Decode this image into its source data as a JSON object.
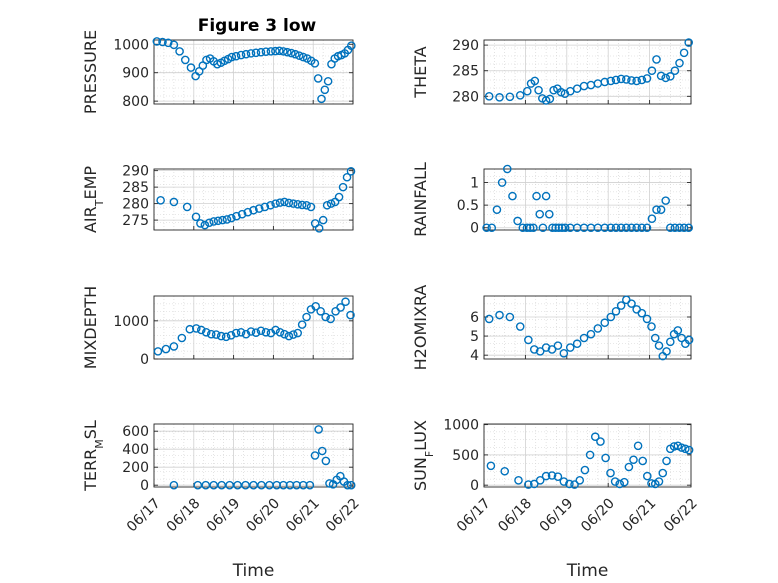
{
  "figure": {
    "title": "Figure 3 low"
  },
  "colors": {
    "series": "#0072BD",
    "axis": "#262626",
    "grid": "#d0d0d0"
  },
  "chart_data": [
    {
      "type": "scatter",
      "title": "Figure 3 low",
      "xlabel": "",
      "ylabel": "PRESSURE",
      "ylabel_sub": "",
      "xlim": [
        "06/17",
        "06/22"
      ],
      "xticks": [],
      "ylim": [
        790,
        1015
      ],
      "yticks": [
        800,
        900,
        1000
      ],
      "grid": true,
      "marker": "open-circle",
      "x": [
        "06/17",
        "06/17",
        "06/17",
        "06/17",
        "06/17",
        "06/17",
        "06/17",
        "06/18",
        "06/18",
        "06/18",
        "06/18",
        "06/18",
        "06/18",
        "06/18",
        "06/18",
        "06/18",
        "06/18",
        "06/18",
        "06/19",
        "06/19",
        "06/19",
        "06/19",
        "06/19",
        "06/19",
        "06/19",
        "06/19",
        "06/20",
        "06/20",
        "06/20",
        "06/20",
        "06/20",
        "06/20",
        "06/20",
        "06/20",
        "06/20",
        "06/20",
        "06/21",
        "06/21",
        "06/21",
        "06/21",
        "06/21",
        "06/21",
        "06/21",
        "06/21",
        "06/21",
        "06/21",
        "06/21",
        "06/21"
      ],
      "y": [
        1010,
        1008,
        1005,
        998,
        975,
        945,
        918,
        888,
        905,
        925,
        945,
        950,
        940,
        930,
        935,
        942,
        948,
        955,
        958,
        962,
        965,
        968,
        970,
        972,
        974,
        975,
        976,
        977,
        975,
        972,
        969,
        965,
        960,
        955,
        950,
        942,
        933,
        880,
        808,
        840,
        870,
        930,
        950,
        958,
        962,
        968,
        980,
        995
      ]
    },
    {
      "type": "scatter",
      "title": "",
      "xlabel": "",
      "ylabel": "THETA",
      "ylabel_sub": "",
      "xlim": [
        "06/17",
        "06/22"
      ],
      "xticks": [],
      "ylim": [
        278.5,
        291
      ],
      "yticks": [
        280,
        285,
        290
      ],
      "grid": true,
      "marker": "open-circle",
      "x": [
        "06/17",
        "06/17",
        "06/17",
        "06/17",
        "06/18",
        "06/18",
        "06/18",
        "06/18",
        "06/18",
        "06/18",
        "06/18",
        "06/18",
        "06/18",
        "06/18",
        "06/18",
        "06/19",
        "06/19",
        "06/19",
        "06/19",
        "06/19",
        "06/19",
        "06/20",
        "06/20",
        "06/20",
        "06/20",
        "06/20",
        "06/20",
        "06/20",
        "06/20",
        "06/21",
        "06/21",
        "06/21",
        "06/21",
        "06/21",
        "06/21",
        "06/21",
        "06/21",
        "06/21"
      ],
      "y": [
        280,
        279.8,
        279.9,
        280.2,
        281,
        282.5,
        283,
        281.2,
        279.6,
        279.2,
        279.5,
        281.2,
        281.5,
        280.8,
        280.5,
        281,
        281.5,
        282,
        282.2,
        282.5,
        282.8,
        283,
        283.2,
        283.4,
        283.3,
        283.1,
        283,
        283.2,
        283.5,
        285,
        287.2,
        284,
        283.6,
        283.9,
        285,
        286.5,
        288.5,
        290.5
      ]
    },
    {
      "type": "scatter",
      "title": "",
      "xlabel": "",
      "ylabel": "AIR",
      "ylabel_sub": "T",
      "ylabel_suffix": "EMP",
      "xlim": [
        "06/17",
        "06/22"
      ],
      "xticks": [],
      "ylim": [
        272,
        290.5
      ],
      "yticks": [
        275,
        280,
        285,
        290
      ],
      "grid": true,
      "marker": "open-circle",
      "x": [
        "06/17",
        "06/17",
        "06/17",
        "06/18",
        "06/18",
        "06/18",
        "06/18",
        "06/18",
        "06/18",
        "06/18",
        "06/18",
        "06/18",
        "06/19",
        "06/19",
        "06/19",
        "06/19",
        "06/19",
        "06/19",
        "06/19",
        "06/20",
        "06/20",
        "06/20",
        "06/20",
        "06/20",
        "06/20",
        "06/20",
        "06/20",
        "06/20",
        "06/21",
        "06/21",
        "06/21",
        "06/21",
        "06/21",
        "06/21",
        "06/21",
        "06/21",
        "06/21",
        "06/21"
      ],
      "y": [
        281,
        280.5,
        279,
        276,
        274,
        273.5,
        274.2,
        274.6,
        274.8,
        275,
        275.2,
        275.6,
        276.2,
        276.8,
        277.4,
        278,
        278.5,
        279,
        279.5,
        280,
        280.3,
        280.5,
        280.2,
        280,
        279.8,
        279.6,
        279.5,
        279,
        274,
        272.5,
        275,
        279.5,
        280,
        280.5,
        282,
        285,
        288,
        289.8
      ]
    },
    {
      "type": "scatter",
      "title": "",
      "xlabel": "",
      "ylabel": "RAINFALL",
      "ylabel_sub": "",
      "xlim": [
        "06/17",
        "06/22"
      ],
      "xticks": [],
      "ylim": [
        -0.05,
        1.3
      ],
      "yticks": [
        0,
        0.5,
        1
      ],
      "grid": true,
      "marker": "open-circle",
      "x": [
        "06/17",
        "06/17",
        "06/17",
        "06/17",
        "06/17",
        "06/17",
        "06/17",
        "06/17",
        "06/18",
        "06/18",
        "06/18",
        "06/18",
        "06/18",
        "06/18",
        "06/18",
        "06/18",
        "06/18",
        "06/18",
        "06/18",
        "06/18",
        "06/18",
        "06/19",
        "06/19",
        "06/19",
        "06/19",
        "06/19",
        "06/19",
        "06/20",
        "06/20",
        "06/20",
        "06/20",
        "06/20",
        "06/20",
        "06/20",
        "06/20",
        "06/21",
        "06/21",
        "06/21",
        "06/21",
        "06/21",
        "06/21",
        "06/21",
        "06/21",
        "06/21"
      ],
      "y": [
        0,
        0,
        0.4,
        1.0,
        1.3,
        0.7,
        0.15,
        0,
        0,
        0,
        0,
        0.7,
        0.3,
        0,
        0.7,
        0.3,
        0,
        0,
        0,
        0,
        0,
        0,
        0,
        0,
        0,
        0,
        0,
        0,
        0,
        0,
        0,
        0,
        0,
        0,
        0,
        0.2,
        0.4,
        0.4,
        0.6,
        0,
        0,
        0,
        0,
        0
      ]
    },
    {
      "type": "scatter",
      "title": "",
      "xlabel": "",
      "ylabel": "MIXDEPTH",
      "ylabel_sub": "",
      "xlim": [
        "06/17",
        "06/22"
      ],
      "xticks": [],
      "ylim": [
        0,
        1650
      ],
      "yticks": [
        0,
        1000
      ],
      "grid": true,
      "marker": "open-circle",
      "x": [
        "06/17",
        "06/17",
        "06/17",
        "06/17",
        "06/17",
        "06/18",
        "06/18",
        "06/18",
        "06/18",
        "06/18",
        "06/18",
        "06/18",
        "06/18",
        "06/19",
        "06/19",
        "06/19",
        "06/19",
        "06/19",
        "06/19",
        "06/19",
        "06/19",
        "06/20",
        "06/20",
        "06/20",
        "06/20",
        "06/20",
        "06/20",
        "06/20",
        "06/20",
        "06/20",
        "06/21",
        "06/21",
        "06/21",
        "06/21",
        "06/21",
        "06/21",
        "06/21",
        "06/21"
      ],
      "y": [
        200,
        260,
        330,
        550,
        780,
        800,
        760,
        700,
        650,
        640,
        600,
        580,
        620,
        680,
        700,
        650,
        720,
        690,
        740,
        700,
        680,
        760,
        700,
        650,
        600,
        640,
        680,
        900,
        1100,
        1300,
        1380,
        1250,
        1100,
        1050,
        1250,
        1350,
        1500,
        1150
      ]
    },
    {
      "type": "scatter",
      "title": "",
      "xlabel": "",
      "ylabel": "H2OMIXRA",
      "ylabel_sub": "",
      "xlim": [
        "06/17",
        "06/22"
      ],
      "xticks": [],
      "ylim": [
        3.8,
        7.1
      ],
      "yticks": [
        4,
        5,
        6
      ],
      "grid": true,
      "marker": "open-circle",
      "x": [
        "06/17",
        "06/17",
        "06/17",
        "06/17",
        "06/18",
        "06/18",
        "06/18",
        "06/18",
        "06/18",
        "06/18",
        "06/18",
        "06/19",
        "06/19",
        "06/19",
        "06/19",
        "06/19",
        "06/19",
        "06/20",
        "06/20",
        "06/20",
        "06/20",
        "06/20",
        "06/20",
        "06/20",
        "06/20",
        "06/21",
        "06/21",
        "06/21",
        "06/21",
        "06/21",
        "06/21",
        "06/21",
        "06/21",
        "06/21",
        "06/21",
        "06/21"
      ],
      "y": [
        5.9,
        6.1,
        6.0,
        5.5,
        4.8,
        4.3,
        4.2,
        4.4,
        4.3,
        4.5,
        4.1,
        4.4,
        4.6,
        4.9,
        5.1,
        5.4,
        5.7,
        6.0,
        6.3,
        6.6,
        6.9,
        6.7,
        6.4,
        6.2,
        5.9,
        5.5,
        4.9,
        4.5,
        3.95,
        4.2,
        4.7,
        5.1,
        5.3,
        4.9,
        4.6,
        4.8
      ]
    },
    {
      "type": "scatter",
      "title": "",
      "xlabel": "Time",
      "ylabel": "TERR",
      "ylabel_sub": "M",
      "ylabel_suffix": "SL",
      "xlim": [
        "06/17",
        "06/22"
      ],
      "xticks": [
        "06/17",
        "06/18",
        "06/19",
        "06/20",
        "06/21",
        "06/22"
      ],
      "ylim": [
        -20,
        680
      ],
      "yticks": [
        0,
        200,
        400,
        600
      ],
      "grid": true,
      "marker": "open-circle",
      "x": [
        "06/17",
        "06/18",
        "06/18",
        "06/18",
        "06/18",
        "06/18",
        "06/19",
        "06/19",
        "06/19",
        "06/19",
        "06/19",
        "06/20",
        "06/20",
        "06/20",
        "06/20",
        "06/20",
        "06/20",
        "06/21",
        "06/21",
        "06/21",
        "06/21",
        "06/21",
        "06/21",
        "06/21",
        "06/21",
        "06/21",
        "06/21",
        "06/21"
      ],
      "y": [
        0,
        0,
        0,
        0,
        0,
        0,
        0,
        0,
        0,
        0,
        0,
        0,
        0,
        0,
        0,
        0,
        0,
        330,
        620,
        380,
        270,
        20,
        10,
        60,
        100,
        40,
        0,
        0
      ]
    },
    {
      "type": "scatter",
      "title": "",
      "xlabel": "Time",
      "ylabel": "SUN",
      "ylabel_sub": "F",
      "ylabel_suffix": "LUX",
      "xlim": [
        "06/17",
        "06/22"
      ],
      "xticks": [
        "06/17",
        "06/18",
        "06/19",
        "06/20",
        "06/21",
        "06/22"
      ],
      "ylim": [
        -30,
        1010
      ],
      "yticks": [
        0,
        500,
        1000
      ],
      "grid": true,
      "marker": "open-circle",
      "x": [
        "06/17",
        "06/17",
        "06/17",
        "06/18",
        "06/18",
        "06/18",
        "06/18",
        "06/18",
        "06/18",
        "06/18",
        "06/19",
        "06/19",
        "06/19",
        "06/19",
        "06/19",
        "06/19",
        "06/19",
        "06/19",
        "06/20",
        "06/20",
        "06/20",
        "06/20",
        "06/20",
        "06/20",
        "06/20",
        "06/20",
        "06/20",
        "06/21",
        "06/21",
        "06/21",
        "06/21",
        "06/21",
        "06/21",
        "06/21",
        "06/21",
        "06/21",
        "06/21",
        "06/21"
      ],
      "y": [
        320,
        230,
        80,
        10,
        20,
        80,
        150,
        160,
        140,
        60,
        20,
        10,
        80,
        250,
        500,
        800,
        720,
        450,
        200,
        60,
        20,
        50,
        300,
        420,
        650,
        400,
        150,
        30,
        20,
        60,
        200,
        400,
        600,
        640,
        650,
        620,
        600,
        580
      ]
    }
  ]
}
